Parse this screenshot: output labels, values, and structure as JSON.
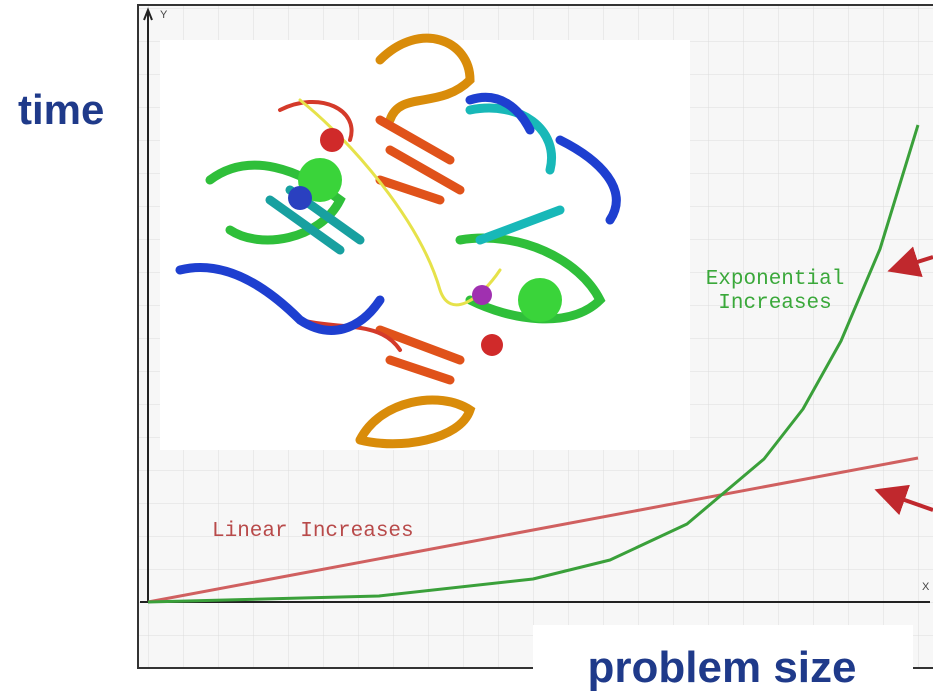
{
  "y_axis_label": "time",
  "x_axis_label": "problem size",
  "axis_y_letter": "Y",
  "axis_x_letter": "X",
  "exponential_label": [
    "Exponential",
    "Increases"
  ],
  "linear_label": "Linear Increases"
}
